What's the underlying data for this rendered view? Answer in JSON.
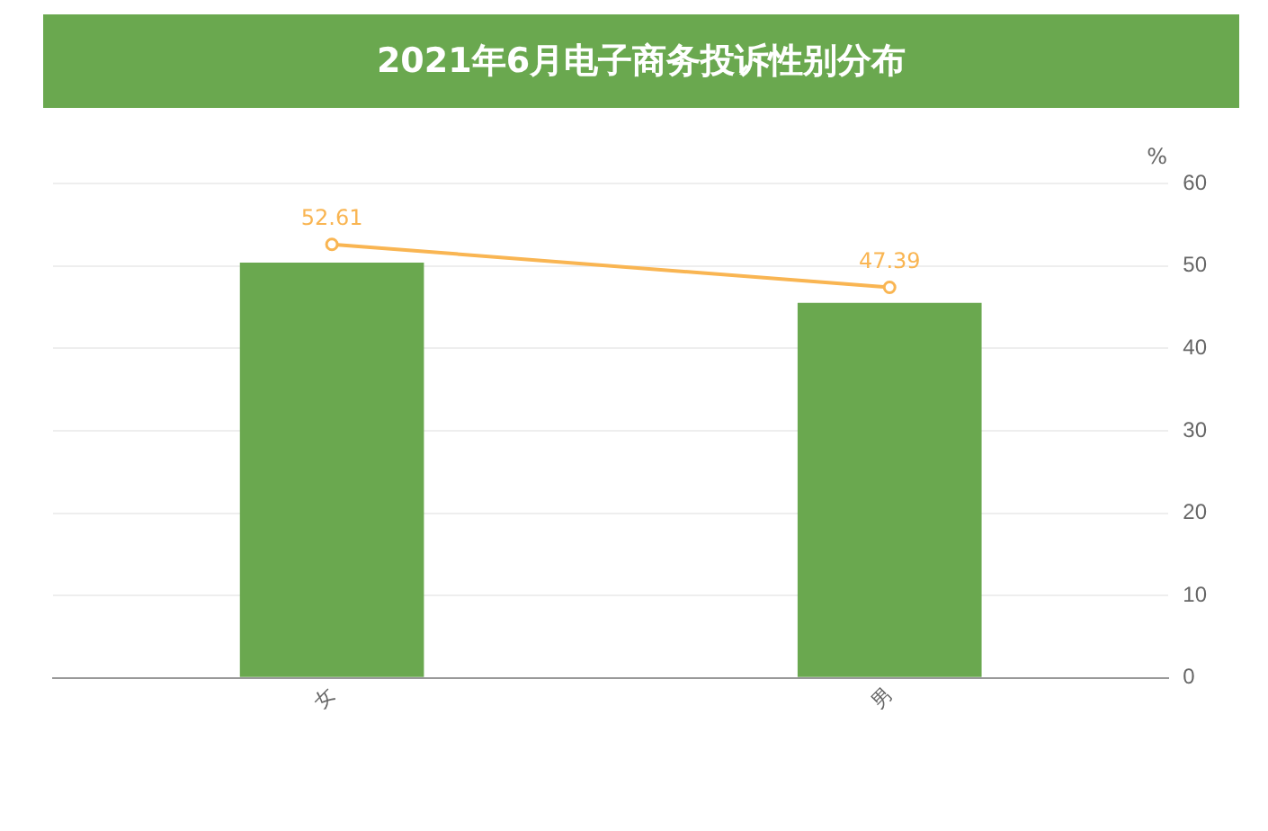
{
  "chart_data": {
    "type": "bar",
    "title": "2021年6月电子商务投诉性别分布",
    "ylabel": "%",
    "categories": [
      "女",
      "男"
    ],
    "series": [
      {
        "color": "#6aa84f",
        "values": [
          50.4,
          45.5
        ]
      },
      {
        "type": "line",
        "color": "#f9b552",
        "values": [
          52.61,
          47.39
        ],
        "value_labels": [
          "52.61",
          "47.39"
        ]
      }
    ],
    "ylim": [
      0,
      60
    ],
    "yticks": [
      0,
      10,
      20,
      30,
      40,
      50,
      60
    ],
    "grid": "y",
    "legend": false,
    "marker": "circle"
  }
}
